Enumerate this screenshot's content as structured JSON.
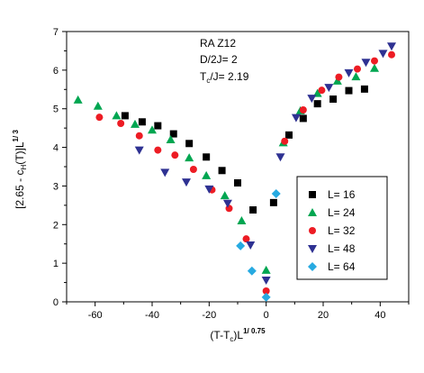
{
  "chart_data": {
    "type": "scatter",
    "title": "",
    "annotations": [
      "RA Z12",
      "D/2J= 2",
      "T",
      "c",
      "/J= 2.19"
    ],
    "xlabel": {
      "base": "(T-T",
      "sub": "c",
      "mid": ")L",
      "sup": "1/ 0.75"
    },
    "ylabel": {
      "base": "[2.65 - c",
      "sub": "H",
      "mid": "(T)]L",
      "sup": "1/ 3"
    },
    "xlim": [
      -70,
      50
    ],
    "ylim": [
      0,
      7
    ],
    "xticks": [
      "-60",
      "-40",
      "-20",
      "0",
      "20",
      "40"
    ],
    "xtick_values": [
      -60,
      -40,
      -20,
      0,
      20,
      40
    ],
    "yticks": [
      "0",
      "1",
      "2",
      "3",
      "4",
      "5",
      "6",
      "7"
    ],
    "ytick_values": [
      0,
      1,
      2,
      3,
      4,
      5,
      6,
      7
    ],
    "legend": {
      "placement": "lower-right"
    },
    "series": [
      {
        "name": "L= 16",
        "marker": "square",
        "color": "#000000",
        "x": [
          -49.5,
          -43.5,
          -38,
          -32.5,
          -27,
          -21,
          -15.5,
          -10,
          -4.6,
          2.6,
          8,
          13,
          18,
          23.5,
          29,
          34.5
        ],
        "y": [
          4.82,
          4.66,
          4.56,
          4.35,
          4.1,
          3.75,
          3.4,
          3.08,
          2.38,
          2.57,
          4.32,
          4.75,
          5.13,
          5.25,
          5.47,
          5.51
        ]
      },
      {
        "name": "L= 24",
        "marker": "triangle-up",
        "color": "#00a651",
        "x": [
          -66,
          -59,
          -52.5,
          -46,
          -40,
          -33.5,
          -27,
          -21,
          -14.5,
          -8.6,
          0,
          6,
          12,
          18,
          25,
          31.5,
          38
        ],
        "y": [
          5.23,
          5.07,
          4.82,
          4.6,
          4.45,
          4.2,
          3.73,
          3.27,
          2.75,
          2.1,
          0.82,
          4.12,
          4.95,
          5.4,
          5.72,
          5.83,
          6.05
        ]
      },
      {
        "name": "L= 32",
        "marker": "circle",
        "color": "#ed1c24",
        "x": [
          -58.5,
          -51,
          -44.5,
          -38,
          -32,
          -25.5,
          -19,
          -13,
          -7,
          0,
          6.5,
          13,
          19.5,
          25.5,
          32,
          38,
          44
        ],
        "y": [
          4.78,
          4.62,
          4.3,
          3.93,
          3.8,
          3.43,
          2.9,
          2.42,
          1.63,
          0.28,
          4.16,
          4.97,
          5.48,
          5.82,
          6.03,
          6.24,
          6.4
        ]
      },
      {
        "name": "L= 48",
        "marker": "triangle-down",
        "color": "#2e3192",
        "x": [
          -44.5,
          -35.5,
          -28,
          -20,
          -13.5,
          -5.5,
          0,
          5,
          10.5,
          16,
          22,
          29,
          35,
          41,
          44
        ],
        "y": [
          3.93,
          3.35,
          3.1,
          2.92,
          2.55,
          1.47,
          0.56,
          3.75,
          4.77,
          5.27,
          5.55,
          5.93,
          6.2,
          6.43,
          6.62
        ]
      },
      {
        "name": "L= 64",
        "marker": "diamond",
        "color": "#27aae1",
        "x": [
          -9,
          -5,
          0,
          3.5
        ],
        "y": [
          1.45,
          0.8,
          0.12,
          2.8
        ]
      }
    ]
  }
}
